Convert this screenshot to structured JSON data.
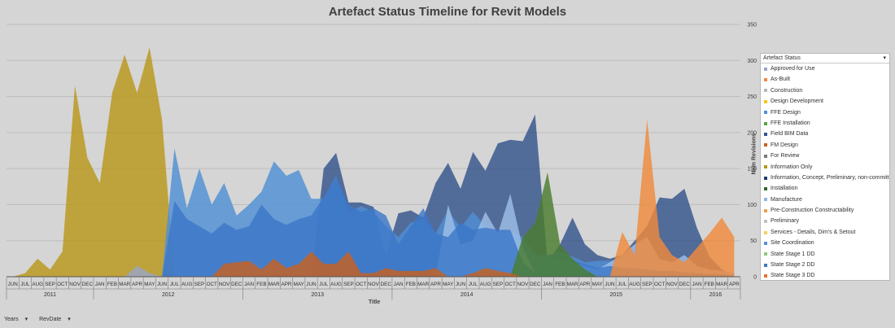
{
  "chart_data": {
    "type": "area",
    "title": "Artefact Status Timeline for Revit Models",
    "xlabel": "Title",
    "ylabel": "Num Revisions",
    "ylim": [
      0,
      350
    ],
    "yticks": [
      0,
      50,
      100,
      150,
      200,
      250,
      300,
      350
    ],
    "y_axis_side": "right",
    "grid": true,
    "legend": {
      "title": "Artefact Status",
      "placement": "right",
      "items": [
        {
          "name": "Approved for Use",
          "color": "#9aa6c8"
        },
        {
          "name": "As-Built",
          "color": "#f08a42"
        },
        {
          "name": "Construction",
          "color": "#b8b8b8"
        },
        {
          "name": "Design Development",
          "color": "#f5c518"
        },
        {
          "name": "FFE Design",
          "color": "#4a90d9"
        },
        {
          "name": "FFE Installation",
          "color": "#5aa040"
        },
        {
          "name": "Field BIM Data",
          "color": "#2b5597"
        },
        {
          "name": "FM Design",
          "color": "#c8601e"
        },
        {
          "name": "For Review",
          "color": "#7a7a7a"
        },
        {
          "name": "Information Only",
          "color": "#b8961a"
        },
        {
          "name": "Information, Concept, Preliminary, non-committal",
          "color": "#1f3a6e"
        },
        {
          "name": "Installation",
          "color": "#2e6b2e"
        },
        {
          "name": "Manufacture",
          "color": "#8fb4e6"
        },
        {
          "name": "Pre-Construction Constructability",
          "color": "#f0a050"
        },
        {
          "name": "Preliminary",
          "color": "#c0c0c0"
        },
        {
          "name": "Services - Details, Dim's & Setout",
          "color": "#f2d060"
        },
        {
          "name": "Site Coordination",
          "color": "#5b8fd0"
        },
        {
          "name": "State Stage 1 DD",
          "color": "#90c878"
        },
        {
          "name": "State Stage 2 DD",
          "color": "#3c78c8"
        },
        {
          "name": "State Stage 3 DD",
          "color": "#e8742a"
        }
      ]
    },
    "x": [
      "JUN",
      "JUL",
      "AUG",
      "SEP",
      "OCT",
      "NOV",
      "DEC",
      "JAN",
      "FEB",
      "MAR",
      "APR",
      "MAY",
      "JUN",
      "JUL",
      "AUG",
      "SEP",
      "OCT",
      "NOV",
      "DEC",
      "JAN",
      "FEB",
      "MAR",
      "APR",
      "MAY",
      "JUN",
      "JUL",
      "AUG",
      "SEP",
      "OCT",
      "NOV",
      "DEC",
      "JAN",
      "FEB",
      "MAR",
      "APR",
      "MAY",
      "JUN",
      "JUL",
      "AUG",
      "SEP",
      "OCT",
      "NOV",
      "DEC",
      "JAN",
      "FEB",
      "MAR",
      "APR",
      "MAY",
      "JUN",
      "JUL",
      "AUG",
      "SEP",
      "OCT",
      "NOV",
      "DEC",
      "JAN",
      "FEB",
      "MAR",
      "APR"
    ],
    "year_groups": [
      {
        "label": "2011",
        "start": 0,
        "count": 7
      },
      {
        "label": "2012",
        "start": 7,
        "count": 12
      },
      {
        "label": "2013",
        "start": 19,
        "count": 12
      },
      {
        "label": "2014",
        "start": 31,
        "count": 12
      },
      {
        "label": "2015",
        "start": 43,
        "count": 12
      },
      {
        "label": "2016",
        "start": 55,
        "count": 4
      }
    ],
    "series": [
      {
        "name": "Information Only",
        "color": "#b8961a",
        "values": [
          0,
          5,
          25,
          10,
          35,
          265,
          165,
          130,
          255,
          308,
          255,
          318,
          218,
          0,
          0,
          0,
          0,
          0,
          0,
          0,
          0,
          0,
          0,
          0,
          0,
          0,
          0,
          0,
          0,
          0,
          0,
          0,
          0,
          0,
          0,
          0,
          0,
          0,
          0,
          0,
          0,
          0,
          0,
          0,
          0,
          0,
          0,
          0,
          0,
          0,
          0,
          0,
          0,
          0,
          0,
          0,
          0,
          0,
          0
        ]
      },
      {
        "name": "Information, Concept, Preliminary, non-committal",
        "color": "#34548c",
        "values": [
          0,
          0,
          0,
          0,
          0,
          0,
          0,
          0,
          0,
          0,
          0,
          0,
          0,
          0,
          0,
          0,
          0,
          0,
          0,
          0,
          0,
          0,
          0,
          0,
          0,
          150,
          172,
          103,
          103,
          97,
          30,
          88,
          92,
          82,
          130,
          158,
          122,
          173,
          147,
          185,
          190,
          188,
          225,
          20,
          45,
          82,
          45,
          30,
          25,
          30,
          50,
          70,
          110,
          108,
          122,
          68,
          28,
          10,
          0
        ]
      },
      {
        "name": "FFE Design",
        "color": "#4f8fd4",
        "values": [
          0,
          0,
          0,
          0,
          0,
          0,
          0,
          0,
          0,
          0,
          0,
          0,
          0,
          178,
          95,
          150,
          100,
          130,
          85,
          100,
          118,
          160,
          140,
          148,
          108,
          108,
          140,
          88,
          98,
          90,
          70,
          55,
          75,
          80,
          60,
          92,
          68,
          90,
          70,
          62,
          62,
          55,
          30,
          30,
          35,
          28,
          20,
          22,
          22,
          25,
          20,
          15,
          12,
          10,
          8,
          10,
          8,
          5,
          3
        ]
      },
      {
        "name": "Manufacture",
        "color": "#9dbfe8",
        "values": [
          0,
          0,
          0,
          0,
          0,
          0,
          0,
          0,
          0,
          0,
          0,
          0,
          0,
          0,
          0,
          0,
          0,
          0,
          0,
          0,
          0,
          0,
          0,
          0,
          0,
          0,
          0,
          0,
          0,
          0,
          0,
          0,
          0,
          0,
          0,
          100,
          45,
          50,
          90,
          60,
          115,
          40,
          5,
          30,
          25,
          20,
          15,
          10,
          20,
          30,
          45,
          55,
          25,
          20,
          30,
          15,
          10,
          8,
          5
        ]
      },
      {
        "name": "Site Coordination",
        "color": "#3c78c8",
        "values": [
          0,
          0,
          0,
          0,
          0,
          0,
          0,
          0,
          0,
          0,
          0,
          0,
          0,
          105,
          80,
          70,
          60,
          75,
          65,
          70,
          100,
          80,
          72,
          80,
          85,
          110,
          138,
          100,
          90,
          95,
          85,
          45,
          70,
          95,
          60,
          55,
          75,
          65,
          68,
          65,
          65,
          20,
          5,
          30,
          30,
          22,
          18,
          12,
          15,
          12,
          12,
          10,
          8,
          8,
          6,
          5,
          4,
          3,
          2
        ]
      },
      {
        "name": "Installation",
        "color": "#4a7d2e",
        "values": [
          0,
          0,
          0,
          0,
          0,
          0,
          0,
          0,
          0,
          0,
          0,
          0,
          0,
          0,
          0,
          0,
          0,
          0,
          0,
          0,
          0,
          0,
          0,
          0,
          0,
          0,
          0,
          0,
          0,
          0,
          0,
          0,
          0,
          0,
          0,
          0,
          0,
          0,
          0,
          0,
          0,
          55,
          75,
          145,
          45,
          25,
          10,
          0,
          0,
          0,
          0,
          0,
          0,
          0,
          0,
          0,
          0,
          0,
          0
        ]
      },
      {
        "name": "State Stage 3 DD",
        "color": "#ef8a3c",
        "values": [
          0,
          0,
          0,
          0,
          0,
          0,
          0,
          0,
          0,
          0,
          0,
          0,
          0,
          0,
          0,
          0,
          0,
          0,
          0,
          0,
          0,
          0,
          0,
          0,
          0,
          0,
          0,
          0,
          0,
          0,
          0,
          0,
          0,
          0,
          0,
          0,
          0,
          0,
          0,
          0,
          0,
          0,
          0,
          0,
          0,
          0,
          0,
          0,
          0,
          62,
          30,
          218,
          55,
          30,
          20,
          40,
          60,
          82,
          55
        ]
      },
      {
        "name": "FM Design",
        "color": "#c8601e",
        "values": [
          0,
          0,
          0,
          0,
          0,
          0,
          0,
          0,
          0,
          0,
          0,
          0,
          0,
          0,
          0,
          0,
          0,
          18,
          20,
          22,
          10,
          25,
          12,
          18,
          35,
          18,
          18,
          35,
          5,
          5,
          12,
          8,
          8,
          8,
          12,
          0,
          0,
          5,
          12,
          8,
          5,
          0,
          0,
          0,
          0,
          0,
          0,
          0,
          0,
          0,
          0,
          0,
          0,
          0,
          0,
          0,
          0,
          0,
          0
        ]
      },
      {
        "name": "Approved for Use",
        "color": "#9aa6c8",
        "values": [
          0,
          0,
          0,
          0,
          0,
          0,
          0,
          0,
          0,
          0,
          15,
          5,
          0,
          0,
          0,
          0,
          0,
          0,
          0,
          0,
          0,
          0,
          0,
          0,
          0,
          0,
          0,
          0,
          0,
          0,
          0,
          0,
          0,
          0,
          0,
          0,
          0,
          0,
          0,
          0,
          0,
          0,
          0,
          0,
          0,
          0,
          0,
          0,
          0,
          0,
          0,
          0,
          0,
          0,
          0,
          0,
          0,
          0,
          0
        ]
      }
    ]
  },
  "filters": {
    "years": "Years",
    "revdate": "RevDate"
  }
}
